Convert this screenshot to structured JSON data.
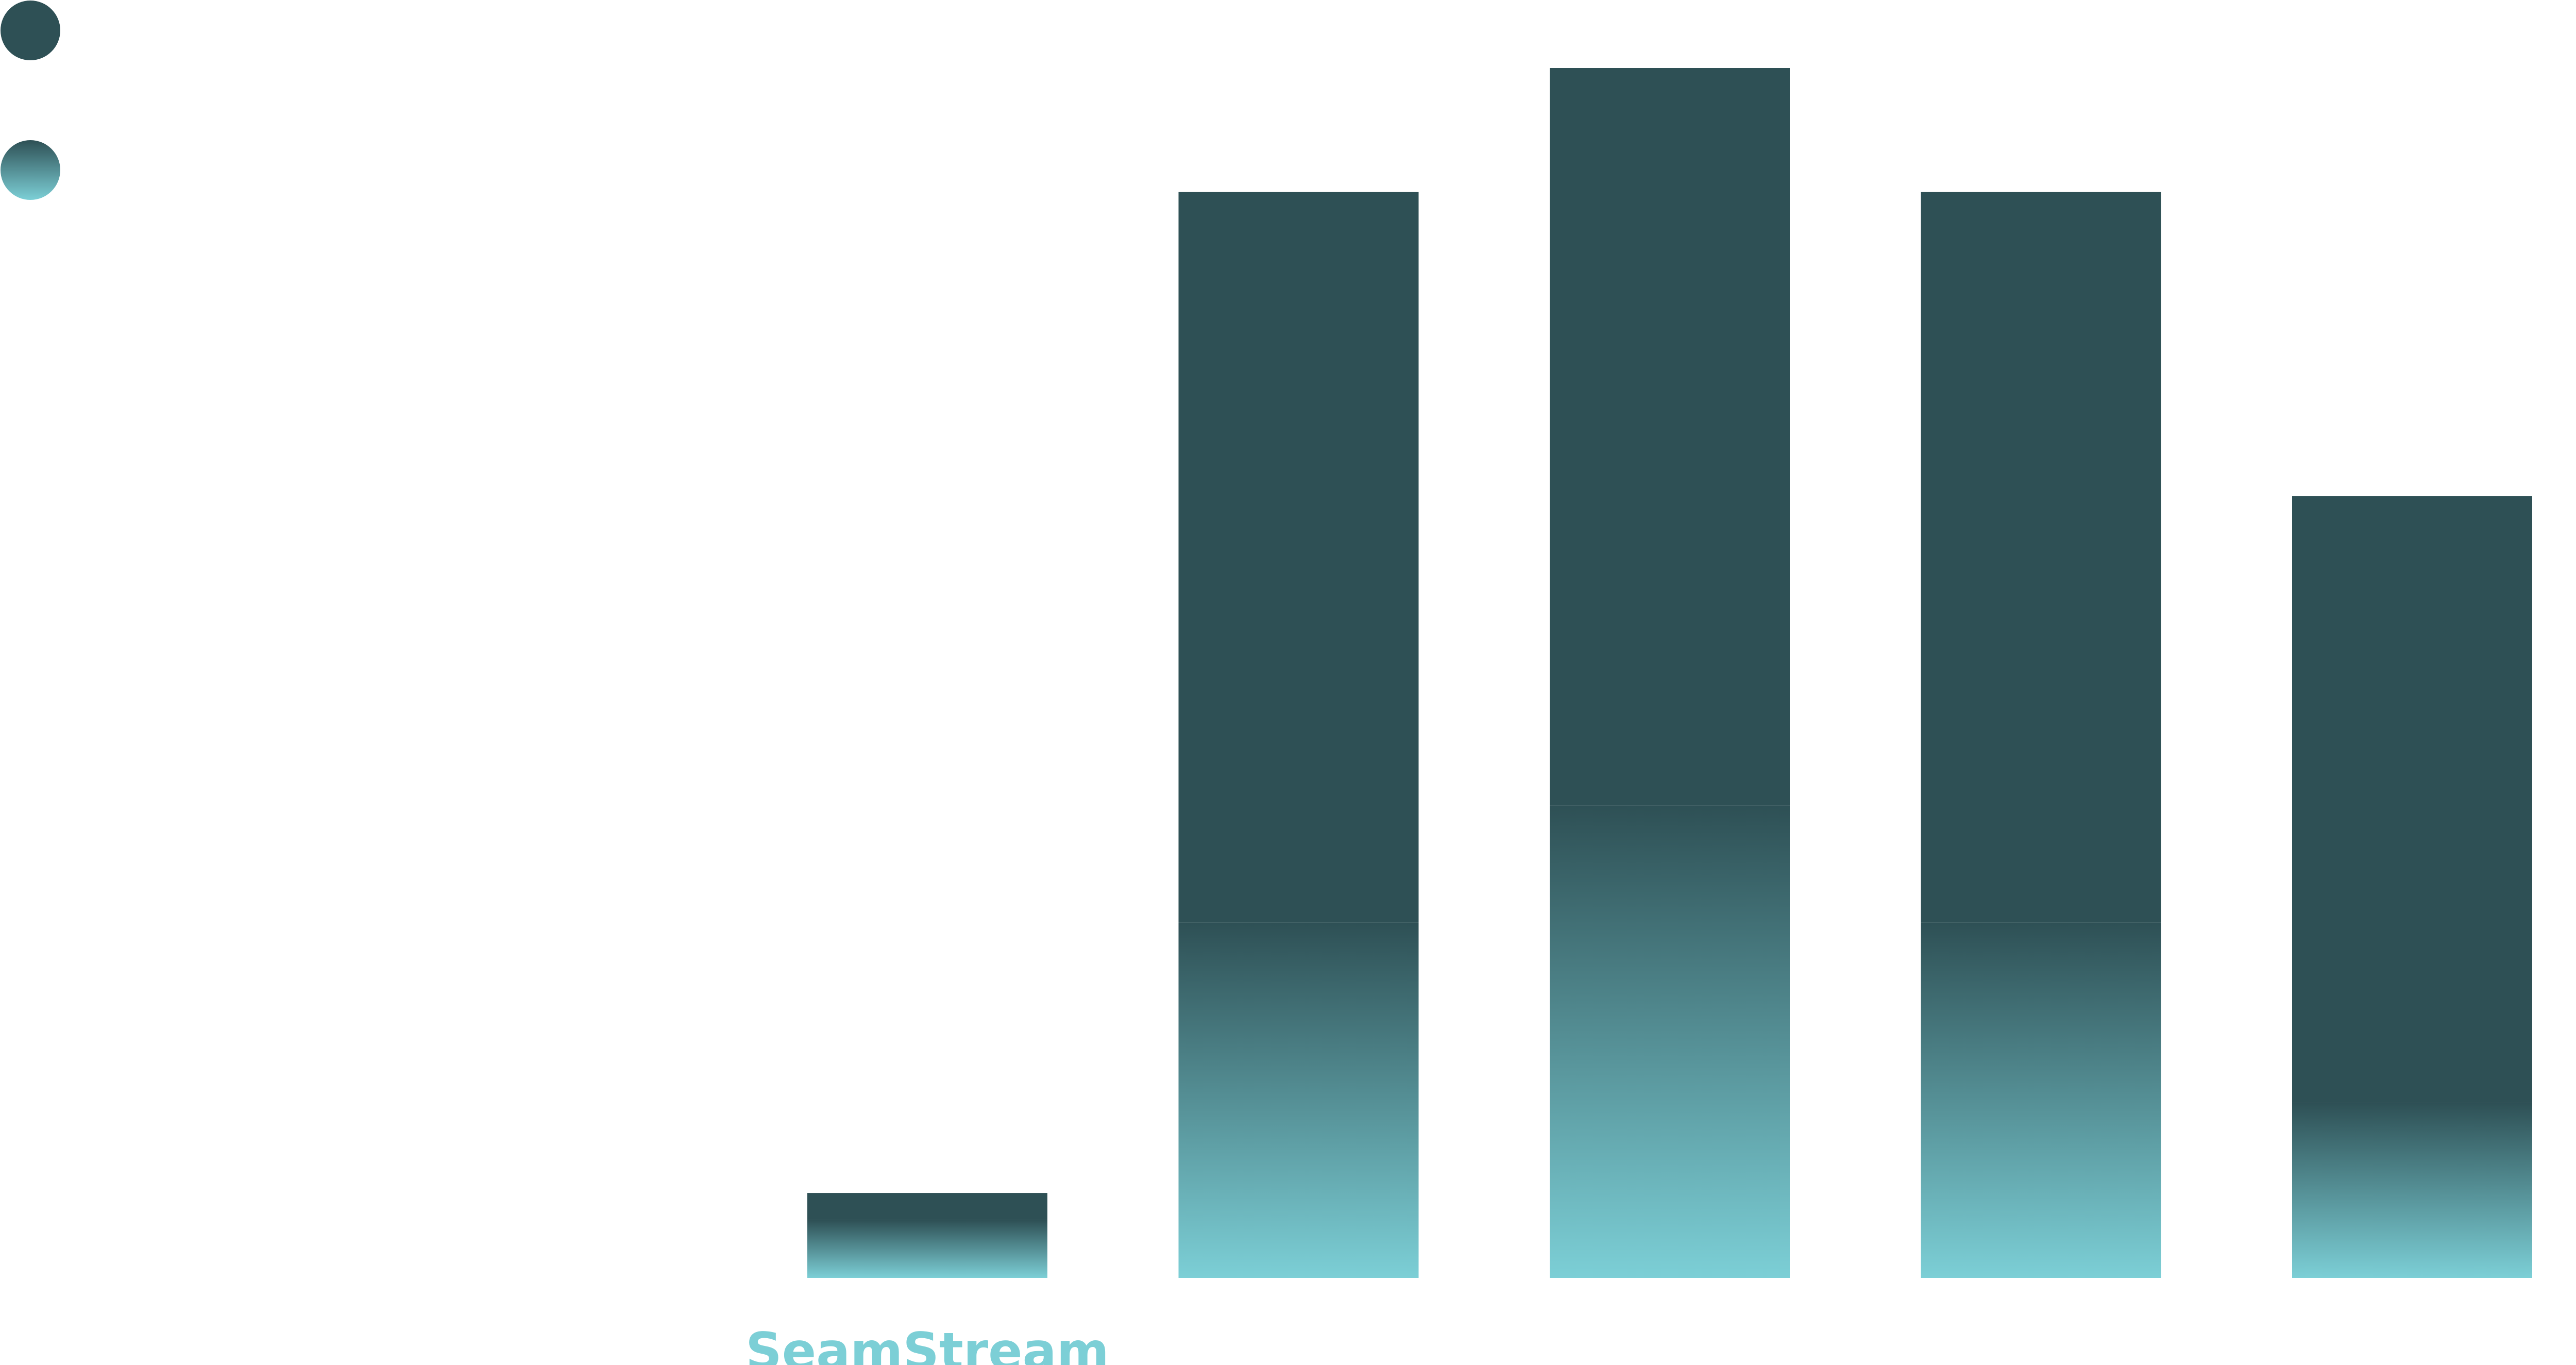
{
  "chart_data": {
    "type": "stacked-bar",
    "categories": [
      "SeamStream",
      null,
      null,
      null,
      null
    ],
    "series": [
      {
        "color": "#2e5055",
        "values": [
          16,
          430,
          434,
          430,
          357
        ]
      },
      {
        "color": "#7ccfd6",
        "values": [
          34,
          209,
          278,
          209,
          103
        ]
      }
    ]
  }
}
